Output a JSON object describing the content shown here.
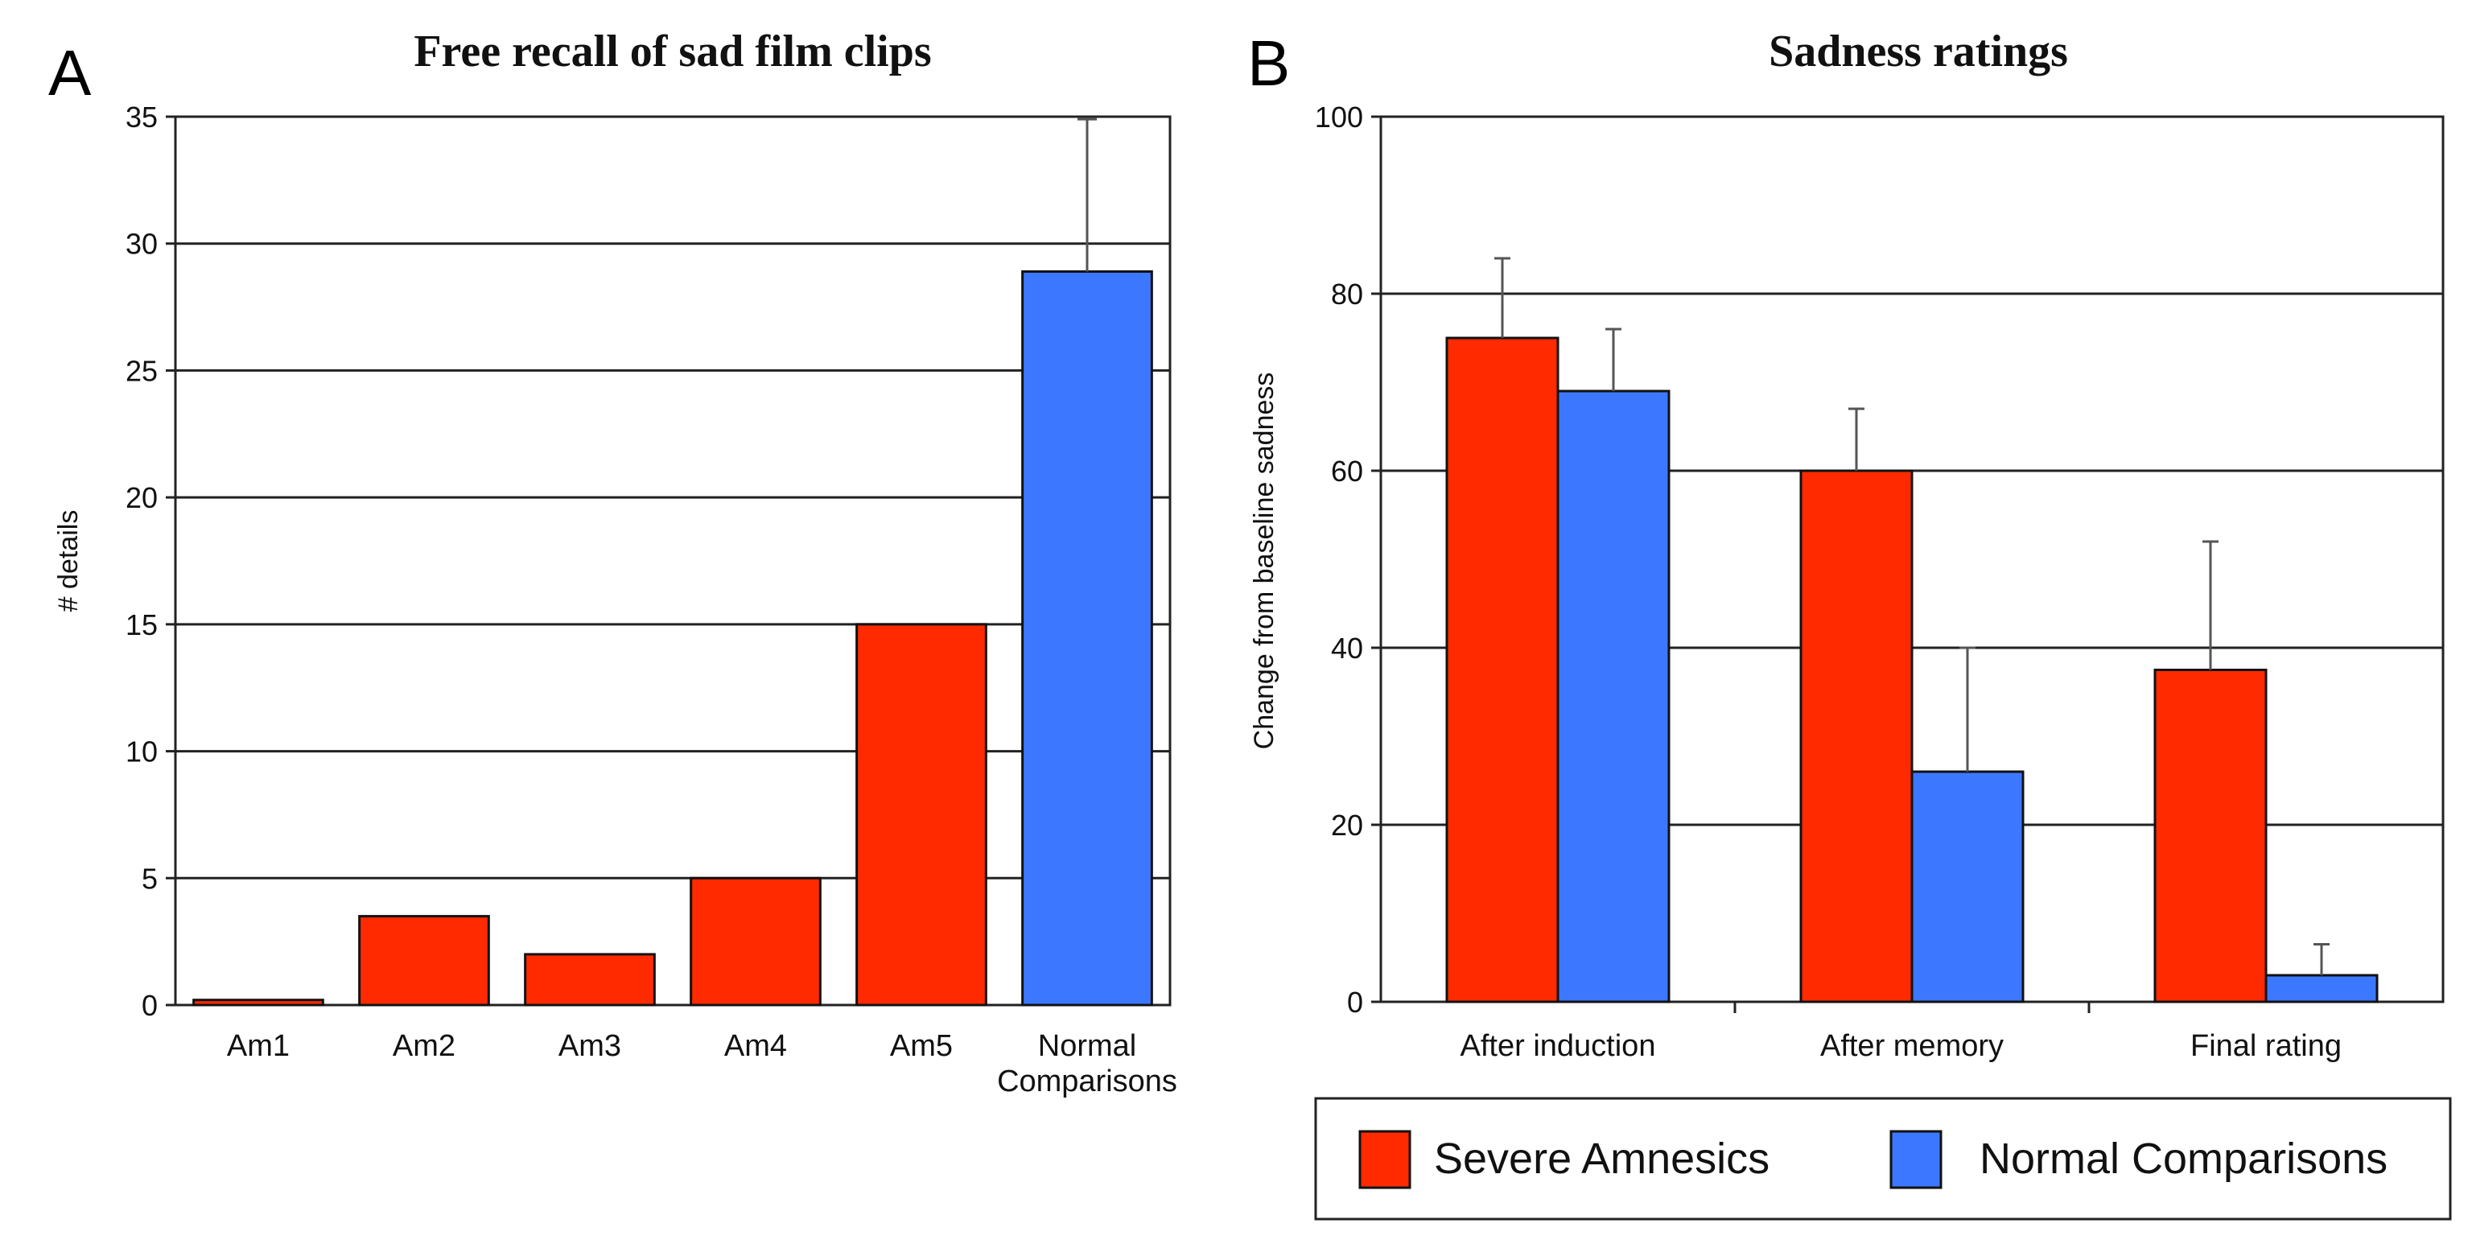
{
  "panels": {
    "a_letter": "A",
    "b_letter": "B"
  },
  "colors": {
    "red": "#ff2a00",
    "blue": "#3c78ff",
    "grid": "#222222"
  },
  "chart_data": [
    {
      "type": "bar",
      "title": "Free recall of sad film clips",
      "xlabel": "",
      "ylabel": "# details",
      "ylim": [
        0,
        35
      ],
      "yticks": [
        0,
        5,
        10,
        15,
        20,
        25,
        30,
        35
      ],
      "categories": [
        "Am1",
        "Am2",
        "Am3",
        "Am4",
        "Am5",
        "Normal Comparisons"
      ],
      "category_lines": [
        [
          "Am1"
        ],
        [
          "Am2"
        ],
        [
          "Am3"
        ],
        [
          "Am4"
        ],
        [
          "Am5"
        ],
        [
          "Normal",
          "Comparisons"
        ]
      ],
      "values": [
        0.2,
        3.5,
        2,
        5,
        15,
        28.9
      ],
      "bar_colors": [
        "red",
        "red",
        "red",
        "red",
        "red",
        "blue"
      ],
      "error_upper": [
        null,
        null,
        null,
        null,
        null,
        34.9
      ]
    },
    {
      "type": "bar",
      "title": "Sadness ratings",
      "xlabel": "",
      "ylabel": "Change from baseline sadness",
      "ylim": [
        0,
        100
      ],
      "yticks": [
        0,
        20,
        40,
        60,
        80,
        100
      ],
      "categories": [
        "After induction",
        "After memory",
        "Final rating"
      ],
      "series": [
        {
          "name": "Severe Amnesics",
          "color": "red",
          "values": [
            75,
            60,
            37.5
          ],
          "error_upper": [
            84,
            67,
            52
          ]
        },
        {
          "name": "Normal Comparisons",
          "color": "blue",
          "values": [
            69,
            26,
            3
          ],
          "error_upper": [
            76,
            40,
            6.5
          ]
        }
      ],
      "legend": [
        "Severe Amnesics",
        "Normal Comparisons"
      ]
    }
  ]
}
